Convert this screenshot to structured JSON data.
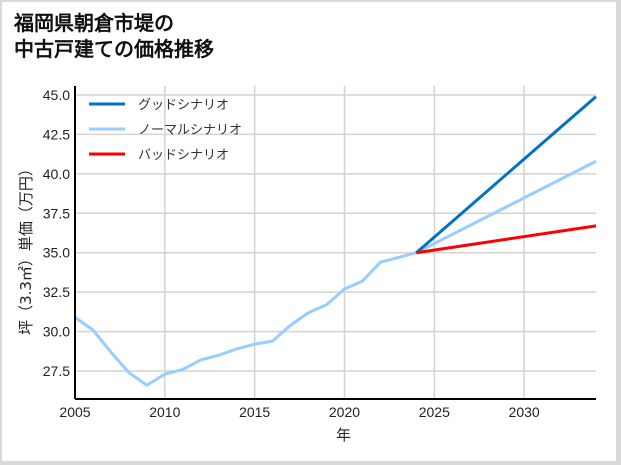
{
  "title_line1": "福岡県朝倉市堤の",
  "title_line2": "中古戸建ての価格推移",
  "chart_data": {
    "type": "line",
    "title": "福岡県朝倉市堤の中古戸建ての価格推移",
    "xlabel": "年",
    "ylabel": "坪（3.3㎡）単価（万円）",
    "xlim": [
      2005,
      2034
    ],
    "ylim": [
      26.0,
      45.3
    ],
    "xticks": [
      2005,
      2010,
      2015,
      2020,
      2025,
      2030
    ],
    "yticks": [
      27.5,
      30.0,
      32.5,
      35.0,
      37.5,
      40.0,
      42.5,
      45.0
    ],
    "grid": true,
    "legend_position": "upper left",
    "series": [
      {
        "name": "グッドシナリオ",
        "color": "#0072c6",
        "x": [
          2024,
          2034
        ],
        "y": [
          35.0,
          44.9
        ]
      },
      {
        "name": "ノーマルシナリオ",
        "color": "#99ccff",
        "x": [
          2005,
          2006,
          2007,
          2008,
          2009,
          2010,
          2011,
          2012,
          2013,
          2014,
          2015,
          2016,
          2017,
          2018,
          2019,
          2020,
          2021,
          2022,
          2023,
          2024,
          2034
        ],
        "y": [
          30.9,
          30.1,
          28.7,
          27.4,
          26.6,
          27.3,
          27.6,
          28.2,
          28.5,
          28.9,
          29.2,
          29.4,
          30.4,
          31.2,
          31.7,
          32.7,
          33.2,
          34.4,
          34.7,
          35.0,
          40.8
        ]
      },
      {
        "name": "バッドシナリオ",
        "color": "#ff0000",
        "x": [
          2024,
          2034
        ],
        "y": [
          35.0,
          36.7
        ]
      }
    ]
  }
}
